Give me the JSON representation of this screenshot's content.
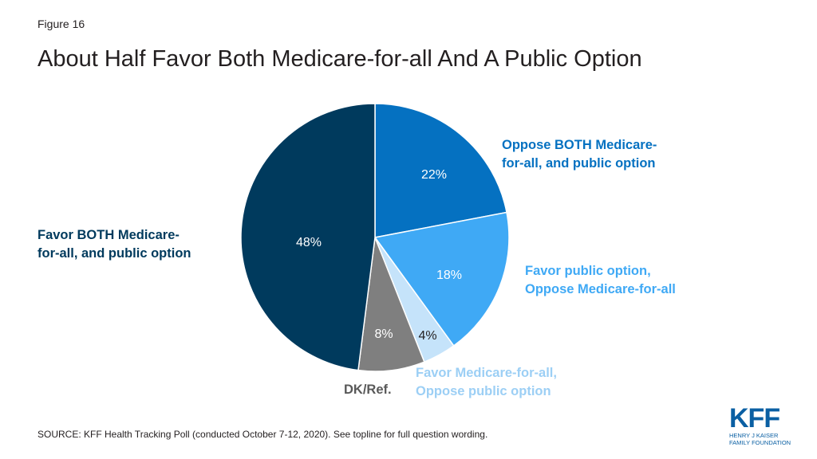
{
  "figure_label": "Figure 16",
  "title": "About Half Favor Both Medicare-for-all And A Public Option",
  "source": "SOURCE: KFF Health Tracking Poll (conducted October 7-12, 2020). See topline for full question wording.",
  "logo": {
    "mark": "KFF",
    "line1": "HENRY J KAISER",
    "line2": "FAMILY FOUNDATION"
  },
  "legend": {
    "oppose_both_1": "Oppose BOTH Medicare-",
    "oppose_both_2": "for-all, and public option",
    "favor_public_1": "Favor public option,",
    "favor_public_2": "Oppose Medicare-for-all",
    "favor_medicare_1": "Favor Medicare-for-all,",
    "favor_medicare_2": "Oppose public option",
    "dk": "DK/Ref.",
    "favor_both_1": "Favor BOTH Medicare-",
    "favor_both_2": "for-all, and public option"
  },
  "colors": {
    "oppose_both": "#0571c1",
    "favor_public": "#3fa9f5",
    "favor_medicare": "#c5e3fa",
    "dk": "#7f7f7f",
    "favor_both": "#003a5d"
  },
  "chart_data": {
    "type": "pie",
    "title": "About Half Favor Both Medicare-for-all And A Public Option",
    "start_angle_deg": 0,
    "direction": "clockwise",
    "slices": [
      {
        "name": "Oppose BOTH Medicare-for-all, and public option",
        "value": 22,
        "label": "22%",
        "color": "#0571c1",
        "label_color": "#ffffff"
      },
      {
        "name": "Favor public option, Oppose Medicare-for-all",
        "value": 18,
        "label": "18%",
        "color": "#3fa9f5",
        "label_color": "#ffffff"
      },
      {
        "name": "Favor Medicare-for-all, Oppose public option",
        "value": 4,
        "label": "4%",
        "color": "#c5e3fa",
        "label_color": "#231f20"
      },
      {
        "name": "DK/Ref.",
        "value": 8,
        "label": "8%",
        "color": "#7f7f7f",
        "label_color": "#ffffff"
      },
      {
        "name": "Favor BOTH Medicare-for-all, and public option",
        "value": 48,
        "label": "48%",
        "color": "#003a5d",
        "label_color": "#ffffff"
      }
    ]
  }
}
